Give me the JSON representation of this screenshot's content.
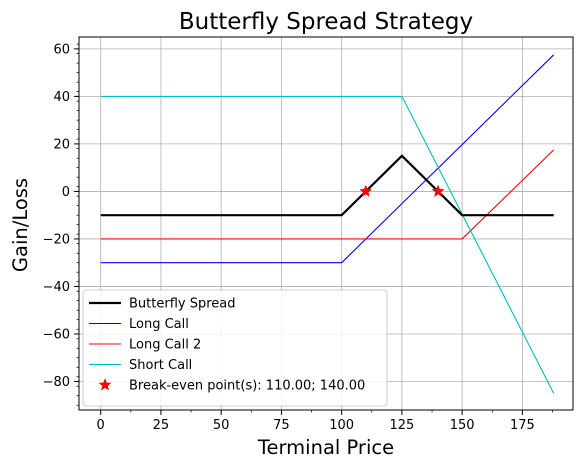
{
  "chart_data": {
    "type": "line",
    "title": "Butterfly Spread Strategy",
    "xlabel": "Terminal Price",
    "ylabel": "Gain/Loss",
    "xlim": [
      -9,
      196
    ],
    "ylim": [
      -92,
      65
    ],
    "xticks": [
      0,
      25,
      50,
      75,
      100,
      125,
      150,
      175
    ],
    "yticks": [
      60,
      40,
      20,
      0,
      -20,
      -40,
      -60,
      -80
    ],
    "xtick_labels": [
      "0",
      "25",
      "50",
      "75",
      "100",
      "125",
      "150",
      "175"
    ],
    "ytick_labels": [
      "60",
      "40",
      "20",
      "0",
      "−20",
      "−40",
      "−60",
      "−80"
    ],
    "grid": true,
    "legend_position": "lower-left",
    "series": [
      {
        "name": "Butterfly Spread",
        "color": "#000000",
        "line_width": 2.2,
        "x": [
          0,
          100,
          125,
          150,
          188
        ],
        "y": [
          -10,
          -10,
          15,
          -10,
          -10
        ]
      },
      {
        "name": "Long Call",
        "color": "#0000ff",
        "line_width": 1.1,
        "x": [
          0,
          100,
          188
        ],
        "y": [
          -30,
          -30,
          57.5
        ]
      },
      {
        "name": "Long Call 2",
        "color": "#ff0000",
        "line_width": 1.1,
        "x": [
          0,
          150,
          188
        ],
        "y": [
          -20,
          -20,
          17.5
        ]
      },
      {
        "name": "Short Call",
        "color": "#00bfbf",
        "line_width": 1.1,
        "x": [
          0,
          125,
          188
        ],
        "y": [
          40,
          40,
          -85
        ]
      }
    ],
    "break_even": {
      "name": "Break-even point(s): 110.00; 140.00",
      "color": "#ff0000",
      "x": [
        110,
        140
      ],
      "y": [
        0,
        0
      ]
    }
  }
}
